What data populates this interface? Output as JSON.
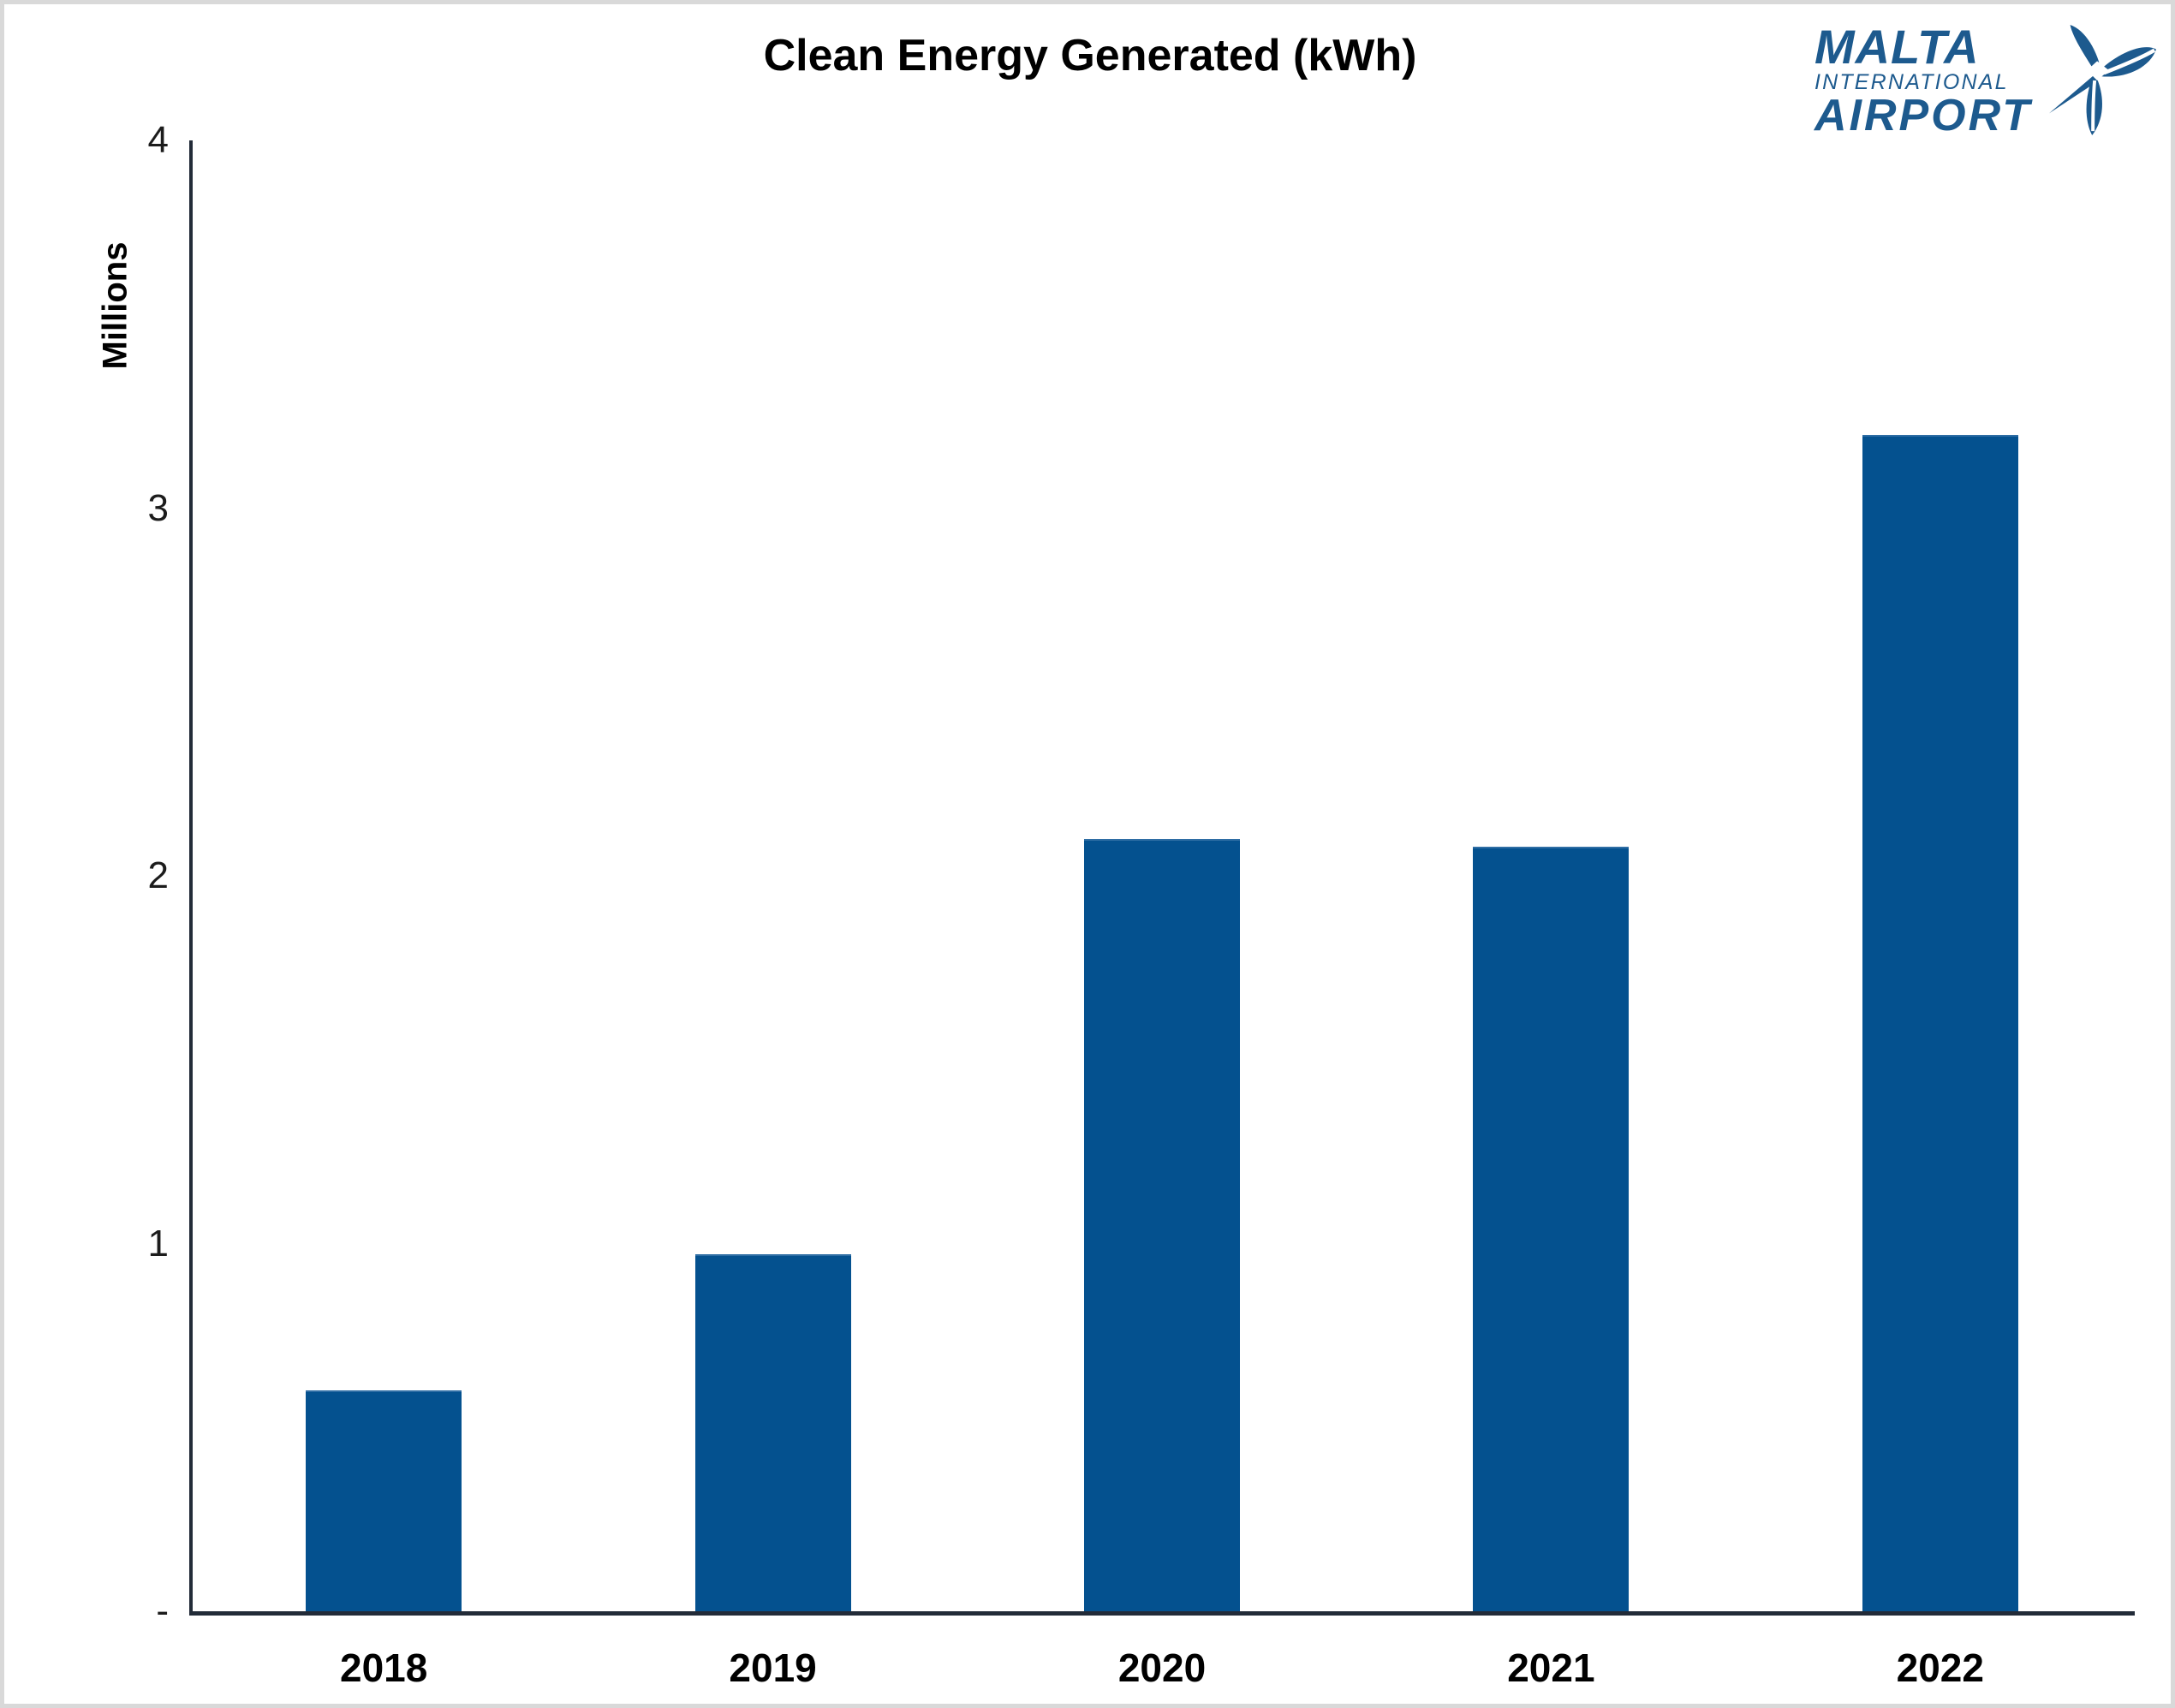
{
  "header": {
    "title": "Clean Energy Generated (kWh)"
  },
  "logo": {
    "line1": "MALTA",
    "line2": "INTERNATIONAL",
    "line3": "AIRPORT",
    "icon": "propeller-plane-icon"
  },
  "chart_data": {
    "type": "bar",
    "title": "Clean Energy Generated (kWh)",
    "categories": [
      "2018",
      "2019",
      "2020",
      "2021",
      "2022"
    ],
    "values": [
      0.6,
      0.97,
      2.1,
      2.08,
      3.2
    ],
    "series": [
      {
        "name": "Clean Energy Generated (kWh)",
        "values": [
          0.6,
          0.97,
          2.1,
          2.08,
          3.2
        ]
      }
    ],
    "xlabel": "",
    "ylabel": "Millions",
    "ylim": [
      0,
      4
    ],
    "yticks": [
      {
        "value": 4,
        "label": "4"
      },
      {
        "value": 3,
        "label": "3"
      },
      {
        "value": 2,
        "label": "2"
      },
      {
        "value": 1,
        "label": "1"
      },
      {
        "value": 0,
        "label": "-"
      }
    ],
    "grid": false,
    "legend": "none",
    "units": "millions of kWh"
  },
  "colors": {
    "bar": "#04518f",
    "logo": "#1d5a8e",
    "axis": "#222b38",
    "frame_border": "#d9d9d9",
    "text": "#000000",
    "tick_text": "#1c1c1c"
  }
}
